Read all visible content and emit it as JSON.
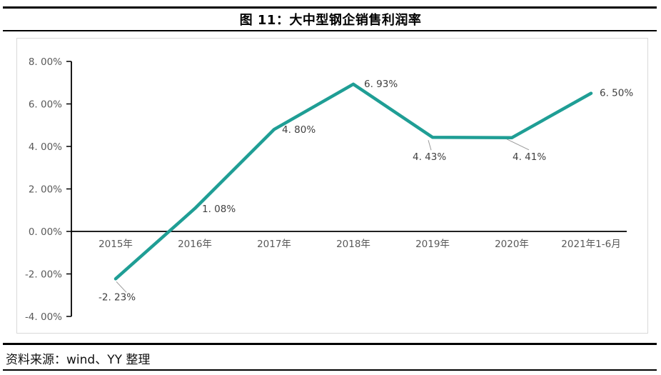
{
  "page": {
    "title": "图 11：大中型钢企销售利润率",
    "source": "资料来源：wind、YY 整理"
  },
  "chart_data": {
    "type": "line",
    "title": "图 11：大中型钢企销售利润率",
    "categories": [
      "2015年",
      "2016年",
      "2017年",
      "2018年",
      "2019年",
      "2020年",
      "2021年1-6月"
    ],
    "series": [
      {
        "name": "大中型钢企销售利润率",
        "values": [
          -2.23,
          1.08,
          4.8,
          6.93,
          4.43,
          4.41,
          6.5
        ]
      }
    ],
    "point_labels": [
      "-2. 23%",
      "1. 08%",
      "4. 80%",
      "6. 93%",
      "4. 43%",
      "4. 41%",
      "6. 50%"
    ],
    "y_ticks": [
      {
        "value": 8,
        "label": "8. 00%"
      },
      {
        "value": 6,
        "label": "6. 00%"
      },
      {
        "value": 4,
        "label": "4. 00%"
      },
      {
        "value": 2,
        "label": "2. 00%"
      },
      {
        "value": 0,
        "label": "0. 00%"
      },
      {
        "value": -2,
        "label": "-2. 00%"
      },
      {
        "value": -4,
        "label": "-4. 00%"
      }
    ],
    "ylim": [
      -4,
      8
    ],
    "y_axis_format": "percent",
    "grid": false,
    "legend": false,
    "line_color": "#1F9E95",
    "axis_color": "#000000",
    "tick_label_color": "#595959",
    "data_label_color": "#404040",
    "leader_line_color": "#999999",
    "plot_border_color": "#d9d9d9"
  }
}
